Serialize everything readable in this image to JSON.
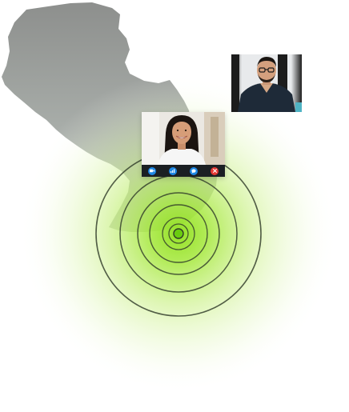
{
  "call": {
    "participants": [
      {
        "role": "remote-man",
        "icon": "person-video-tile"
      },
      {
        "role": "remote-woman",
        "icon": "person-video-tile"
      }
    ],
    "controls": [
      {
        "icon": "video-camera-icon",
        "color": "#1e88e5"
      },
      {
        "icon": "signal-bars-icon",
        "color": "#1e88e5"
      },
      {
        "icon": "chat-bubble-icon",
        "color": "#1e88e5"
      },
      {
        "icon": "hang-up-icon",
        "color": "#e53935"
      }
    ]
  },
  "map": {
    "fill_color": "#a3a8a6"
  },
  "radar": {
    "glow_color": "#9be22a",
    "ring_color": "#2f3a2a",
    "ring_count": 6
  }
}
